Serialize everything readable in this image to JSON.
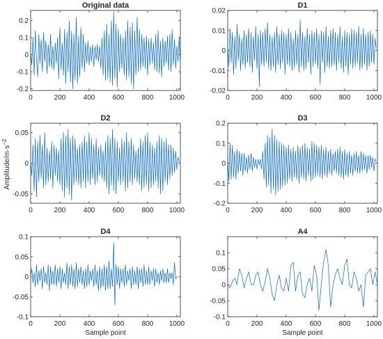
{
  "figure": {
    "ylabel_main": "Amplitude/m·s",
    "ylabel_sup": "−2",
    "xlabel": "Sample point",
    "line_color": "#0066CC"
  },
  "chart_data": [
    {
      "id": "original",
      "type": "line",
      "title": "Original data",
      "xlim": [
        0,
        1024
      ],
      "ylim": [
        -0.21,
        0.26
      ],
      "xticks": [
        0,
        200,
        400,
        600,
        800,
        1000
      ],
      "xtick_labels": [
        "0",
        "200",
        "400",
        "600",
        "800",
        "1000"
      ],
      "yticks": [
        -0.2,
        -0.1,
        0,
        0.1,
        0.2
      ],
      "ytick_labels": [
        "-0.2",
        "-0.1",
        "0",
        "0.1",
        "0.2"
      ],
      "xlabel": "",
      "ylabel": "",
      "series": [
        {
          "x_start": 0,
          "x_step": 8,
          "values": [
            0.02,
            -0.06,
            0.1,
            -0.12,
            0.14,
            -0.03,
            -0.13,
            0.12,
            -0.05,
            0.09,
            -0.1,
            0.13,
            -0.04,
            0.08,
            -0.11,
            0.06,
            -0.07,
            0.12,
            -0.08,
            0.05,
            -0.09,
            0.07,
            -0.05,
            0.1,
            -0.14,
            0.16,
            -0.09,
            0.07,
            -0.12,
            0.15,
            -0.17,
            0.13,
            -0.1,
            0.2,
            -0.16,
            0.14,
            -0.2,
            0.12,
            -0.15,
            0.22,
            -0.17,
            0.11,
            -0.13,
            0.16,
            -0.08,
            0.12,
            -0.1,
            0.07,
            -0.05,
            0.08,
            -0.06,
            0.05,
            -0.04,
            0.06,
            -0.07,
            0.05,
            -0.03,
            0.06,
            -0.04,
            0.05,
            -0.08,
            0.1,
            -0.12,
            0.14,
            -0.15,
            0.18,
            -0.14,
            0.12,
            -0.16,
            0.2,
            -0.18,
            0.25,
            -0.14,
            0.18,
            -0.19,
            0.15,
            -0.1,
            0.12,
            -0.08,
            0.1,
            -0.12,
            0.14,
            -0.15,
            0.2,
            -0.13,
            0.16,
            -0.17,
            0.19,
            -0.2,
            0.14,
            -0.12,
            0.22,
            -0.1,
            0.15,
            -0.09,
            0.12,
            -0.07,
            0.1,
            -0.08,
            0.11,
            -0.12,
            0.09,
            -0.06,
            0.1,
            -0.05,
            0.07,
            -0.09,
            0.12,
            -0.1,
            0.14,
            -0.11,
            0.08,
            -0.13,
            0.1,
            -0.07,
            0.08,
            -0.05,
            0.11,
            -0.09,
            0.12,
            -0.1,
            0.15,
            -0.06,
            0.09,
            -0.08,
            0.05,
            -0.04,
            0.1,
            -0.06,
            0.02
          ]
        }
      ]
    },
    {
      "id": "d1",
      "type": "line",
      "title": "D1",
      "xlim": [
        0,
        1024
      ],
      "ylim": [
        -0.02,
        0.02
      ],
      "xticks": [
        0,
        200,
        400,
        600,
        800,
        1000
      ],
      "xtick_labels": [
        "0",
        "200",
        "400",
        "600",
        "800",
        "1000"
      ],
      "yticks": [
        -0.02,
        -0.01,
        0,
        0.01,
        0.02
      ],
      "ytick_labels": [
        "-0.02",
        "-0.01",
        "0",
        "0.01",
        "0.02"
      ],
      "xlabel": "",
      "ylabel": "",
      "series": [
        {
          "x_start": 0,
          "x_step": 8,
          "values": [
            0.003,
            -0.008,
            0.011,
            -0.006,
            0.009,
            -0.012,
            0.007,
            -0.009,
            0.013,
            -0.005,
            0.008,
            -0.01,
            0.006,
            -0.007,
            0.01,
            -0.009,
            0.008,
            -0.006,
            0.011,
            -0.008,
            0.009,
            -0.011,
            0.007,
            -0.005,
            0.012,
            -0.009,
            0.008,
            -0.018,
            0.01,
            -0.007,
            0.009,
            -0.008,
            0.011,
            -0.006,
            0.014,
            -0.009,
            0.008,
            -0.01,
            0.007,
            -0.008,
            0.009,
            -0.011,
            0.012,
            -0.007,
            0.008,
            -0.009,
            0.01,
            -0.006,
            0.009,
            -0.012,
            0.008,
            -0.007,
            0.011,
            -0.008,
            0.009,
            -0.01,
            0.006,
            -0.009,
            0.01,
            -0.007,
            0.008,
            -0.011,
            0.015,
            -0.008,
            0.009,
            -0.01,
            0.007,
            -0.009,
            0.011,
            -0.006,
            0.008,
            -0.012,
            0.01,
            -0.008,
            0.009,
            -0.007,
            0.011,
            -0.009,
            0.008,
            -0.017,
            0.01,
            -0.006,
            0.009,
            -0.011,
            0.012,
            -0.008,
            0.007,
            -0.009,
            0.01,
            -0.008,
            0.011,
            -0.007,
            0.009,
            -0.01,
            0.008,
            -0.006,
            0.012,
            -0.009,
            0.007,
            -0.011,
            0.01,
            -0.008,
            0.009,
            -0.012,
            0.008,
            -0.007,
            0.011,
            -0.009,
            0.01,
            -0.008,
            0.009,
            -0.006,
            0.012,
            -0.01,
            0.008,
            -0.009,
            0.011,
            -0.007,
            0.008,
            -0.01,
            0.009,
            -0.008,
            0.01,
            -0.006,
            0.008,
            -0.007,
            0.006,
            0.001
          ]
        }
      ]
    },
    {
      "id": "d2",
      "type": "line",
      "title": "D2",
      "xlim": [
        0,
        1024
      ],
      "ylim": [
        -0.065,
        0.065
      ],
      "xticks": [
        0,
        200,
        400,
        600,
        800,
        1000
      ],
      "xtick_labels": [
        "0",
        "200",
        "400",
        "600",
        "800",
        "1000"
      ],
      "yticks": [
        -0.05,
        0,
        0.05
      ],
      "ytick_labels": [
        "-0.05",
        "0",
        "0.05"
      ],
      "xlabel": "",
      "ylabel": "",
      "series": [
        {
          "x_start": 0,
          "x_step": 8,
          "values": [
            0.005,
            -0.02,
            0.03,
            -0.045,
            0.04,
            -0.055,
            0.035,
            -0.03,
            0.045,
            -0.025,
            0.03,
            -0.04,
            0.05,
            -0.035,
            0.025,
            -0.03,
            0.02,
            -0.025,
            0.035,
            -0.04,
            0.03,
            -0.02,
            0.025,
            -0.03,
            0.02,
            -0.035,
            0.04,
            -0.045,
            0.05,
            -0.055,
            0.045,
            -0.04,
            0.055,
            -0.05,
            0.04,
            -0.06,
            0.045,
            -0.035,
            0.04,
            -0.03,
            0.025,
            -0.035,
            0.03,
            -0.04,
            0.035,
            -0.03,
            0.045,
            -0.04,
            0.035,
            -0.03,
            0.05,
            -0.035,
            0.04,
            -0.025,
            0.03,
            -0.035,
            0.04,
            -0.03,
            0.025,
            -0.02,
            0.03,
            -0.025,
            0.02,
            -0.03,
            0.035,
            -0.04,
            0.045,
            -0.05,
            0.04,
            -0.035,
            0.055,
            -0.045,
            0.04,
            -0.05,
            0.035,
            -0.03,
            0.025,
            -0.035,
            0.04,
            -0.03,
            0.035,
            -0.045,
            0.05,
            -0.04,
            0.035,
            -0.03,
            0.04,
            -0.035,
            0.03,
            -0.025,
            0.02,
            -0.03,
            0.025,
            -0.035,
            0.04,
            -0.045,
            0.035,
            -0.04,
            0.045,
            -0.035,
            0.05,
            -0.045,
            0.035,
            -0.04,
            0.03,
            -0.035,
            0.025,
            -0.03,
            0.035,
            -0.04,
            0.045,
            -0.05,
            0.04,
            -0.045,
            0.035,
            -0.03,
            0.04,
            -0.035,
            0.03,
            -0.025,
            0.03,
            -0.02,
            0.025,
            -0.015,
            0.02,
            -0.01,
            0.01,
            0.002
          ]
        }
      ]
    },
    {
      "id": "d3",
      "type": "line",
      "title": "D3",
      "xlim": [
        0,
        1024
      ],
      "ylim": [
        -0.2,
        0.2
      ],
      "xticks": [
        0,
        200,
        400,
        600,
        800,
        1000
      ],
      "xtick_labels": [
        "0",
        "200",
        "400",
        "600",
        "800",
        "1000"
      ],
      "yticks": [
        -0.2,
        -0.1,
        0,
        0.1,
        0.2
      ],
      "ytick_labels": [
        "-0.2",
        "-0.1",
        "0",
        "0.1",
        "0.2"
      ],
      "xlabel": "",
      "ylabel": "",
      "series": [
        {
          "x_start": 0,
          "x_step": 8,
          "values": [
            0.03,
            -0.09,
            0.1,
            -0.08,
            0.09,
            -0.07,
            0.06,
            -0.08,
            0.07,
            -0.05,
            0.06,
            -0.04,
            0.05,
            -0.06,
            0.05,
            -0.04,
            0.03,
            -0.05,
            0.04,
            -0.03,
            0.05,
            -0.04,
            0.03,
            -0.02,
            0.02,
            -0.03,
            0.02,
            -0.01,
            0.02,
            -0.03,
            0.06,
            -0.08,
            0.1,
            -0.12,
            0.14,
            -0.11,
            0.13,
            -0.15,
            0.17,
            -0.13,
            0.14,
            -0.16,
            0.12,
            -0.14,
            0.11,
            -0.13,
            0.1,
            -0.12,
            0.09,
            -0.11,
            0.08,
            -0.1,
            0.09,
            -0.08,
            0.07,
            -0.09,
            0.08,
            -0.07,
            0.06,
            -0.08,
            0.09,
            -0.1,
            0.08,
            -0.07,
            0.09,
            -0.08,
            0.1,
            -0.09,
            0.08,
            -0.06,
            0.07,
            -0.09,
            0.11,
            -0.08,
            0.1,
            -0.07,
            0.09,
            -0.06,
            0.08,
            -0.07,
            0.09,
            -0.08,
            0.07,
            -0.06,
            0.08,
            -0.07,
            0.06,
            -0.05,
            0.07,
            -0.06,
            0.05,
            -0.04,
            0.06,
            -0.05,
            0.07,
            -0.06,
            0.08,
            -0.07,
            0.06,
            -0.08,
            0.07,
            -0.06,
            0.05,
            -0.07,
            0.06,
            -0.05,
            0.04,
            -0.06,
            0.05,
            -0.04,
            0.06,
            -0.05,
            0.04,
            -0.05,
            0.06,
            -0.04,
            0.05,
            -0.03,
            0.04,
            -0.05,
            0.04,
            -0.03,
            0.04,
            -0.02,
            0.03,
            -0.04,
            0.02,
            0.01
          ]
        }
      ]
    },
    {
      "id": "d4",
      "type": "line",
      "title": "D4",
      "xlim": [
        0,
        1024
      ],
      "ylim": [
        -0.1,
        0.1
      ],
      "xticks": [
        0,
        200,
        400,
        600,
        800,
        1000
      ],
      "xtick_labels": [
        "0",
        "200",
        "400",
        "600",
        "800",
        "1000"
      ],
      "yticks": [
        -0.1,
        -0.05,
        0,
        0.05,
        0.1
      ],
      "ytick_labels": [
        "-0.1",
        "-0.05",
        "0",
        "0.05",
        "0.1"
      ],
      "xlabel": "Sample point",
      "ylabel": "",
      "series": [
        {
          "x_start": 0,
          "x_step": 8,
          "values": [
            0.0,
            0.02,
            -0.015,
            0.01,
            -0.025,
            0.03,
            -0.02,
            0.015,
            -0.01,
            0.02,
            -0.03,
            0.025,
            -0.015,
            0.01,
            -0.02,
            0.03,
            -0.035,
            0.025,
            -0.02,
            0.015,
            -0.02,
            0.03,
            -0.025,
            0.02,
            -0.015,
            0.025,
            -0.03,
            0.02,
            -0.015,
            0.01,
            -0.02,
            0.035,
            -0.03,
            0.025,
            -0.02,
            0.03,
            -0.025,
            0.02,
            -0.03,
            0.035,
            -0.025,
            0.02,
            -0.015,
            0.025,
            -0.02,
            0.015,
            -0.03,
            0.02,
            -0.025,
            0.03,
            -0.02,
            0.015,
            -0.01,
            0.02,
            -0.025,
            0.03,
            -0.02,
            0.015,
            -0.035,
            0.025,
            -0.03,
            0.02,
            -0.025,
            0.03,
            -0.035,
            0.025,
            -0.03,
            0.04,
            -0.03,
            0.02,
            -0.025,
            0.085,
            -0.07,
            0.03,
            -0.02,
            0.025,
            -0.03,
            0.02,
            -0.015,
            0.02,
            -0.025,
            0.03,
            -0.02,
            0.015,
            -0.01,
            0.02,
            -0.03,
            0.025,
            -0.02,
            0.015,
            -0.02,
            0.025,
            -0.03,
            0.02,
            -0.015,
            0.02,
            -0.025,
            0.03,
            -0.02,
            0.015,
            -0.02,
            0.025,
            -0.02,
            0.015,
            -0.01,
            0.02,
            -0.025,
            0.02,
            -0.015,
            0.01,
            -0.02,
            0.015,
            -0.01,
            0.02,
            -0.015,
            0.01,
            -0.015,
            0.02,
            -0.015,
            0.01,
            -0.005,
            0.01,
            -0.02,
            0.035,
            -0.005,
            0.0
          ]
        }
      ]
    },
    {
      "id": "a4",
      "type": "line",
      "title": "A4",
      "xlim": [
        0,
        1024
      ],
      "ylim": [
        -0.1,
        0.15
      ],
      "xticks": [
        0,
        200,
        400,
        600,
        800,
        1000
      ],
      "xtick_labels": [
        "0",
        "200",
        "400",
        "600",
        "800",
        "1000"
      ],
      "yticks": [
        -0.1,
        -0.05,
        0,
        0.05,
        0.1
      ],
      "ytick_labels": [
        "-0.1",
        "-0.05",
        "0",
        "0.05",
        "0.1"
      ],
      "xlabel": "Sample point",
      "ylabel": "",
      "series": [
        {
          "x_start": 0,
          "x_step": 16,
          "values": [
            0.0,
            -0.01,
            0.01,
            0.02,
            0.0,
            0.05,
            0.03,
            -0.01,
            0.02,
            0.04,
            0.0,
            0.0,
            0.03,
            0.04,
            0.0,
            -0.02,
            0.01,
            0.05,
            0.02,
            -0.03,
            -0.05,
            0.0,
            0.03,
            -0.01,
            -0.02,
            0.02,
            -0.02,
            0.06,
            0.07,
            -0.02,
            0.03,
            0.04,
            -0.03,
            -0.04,
            0.0,
            0.02,
            -0.02,
            0.06,
            0.03,
            -0.08,
            0.0,
            0.07,
            0.11,
            0.06,
            -0.07,
            0.0,
            0.03,
            0.05,
            0.02,
            0.0,
            0.06,
            0.08,
            0.0,
            -0.01,
            0.04,
            0.02,
            -0.02,
            0.0,
            -0.07,
            0.03,
            0.04,
            0.05,
            0.0,
            0.04,
            0.0
          ]
        }
      ]
    }
  ]
}
